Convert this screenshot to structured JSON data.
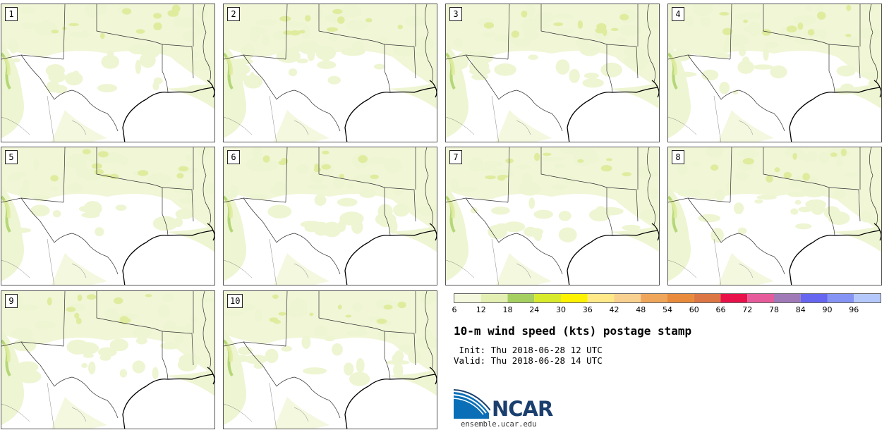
{
  "panels": [
    {
      "label": "1"
    },
    {
      "label": "2"
    },
    {
      "label": "3"
    },
    {
      "label": "4"
    },
    {
      "label": "5"
    },
    {
      "label": "6"
    },
    {
      "label": "7"
    },
    {
      "label": "8"
    },
    {
      "label": "9"
    },
    {
      "label": "10"
    }
  ],
  "colorbar": {
    "ticks": [
      "6",
      "12",
      "18",
      "24",
      "30",
      "36",
      "42",
      "48",
      "54",
      "60",
      "66",
      "72",
      "78",
      "84",
      "90",
      "96"
    ],
    "colors": [
      "#f4f8df",
      "#e4efb4",
      "#a6cf62",
      "#d8ea2c",
      "#fff200",
      "#ffe988",
      "#f8d090",
      "#efa65a",
      "#e98b3c",
      "#dc7644",
      "#e8114a",
      "#e65c9a",
      "#a079b7",
      "#6666f0",
      "#8593f4",
      "#b4c8fb"
    ]
  },
  "title": "10-m wind speed (kts) postage stamp",
  "init_line": " Init: Thu 2018-06-28 12 UTC",
  "valid_line": "Valid: Thu 2018-06-28 14 UTC",
  "logo": {
    "name": "ncar-logo",
    "text": "NCAR",
    "colors": {
      "blue": "#0a6fb7",
      "navy": "#1b3f6e"
    }
  },
  "website": "ensemble.ucar.edu",
  "map_colors": {
    "light_wind": "#eef5d2",
    "moderate_wind": "#dfec9e",
    "strong_wind": "#a6cf62",
    "borders": "#333333",
    "coast": "#000000"
  }
}
